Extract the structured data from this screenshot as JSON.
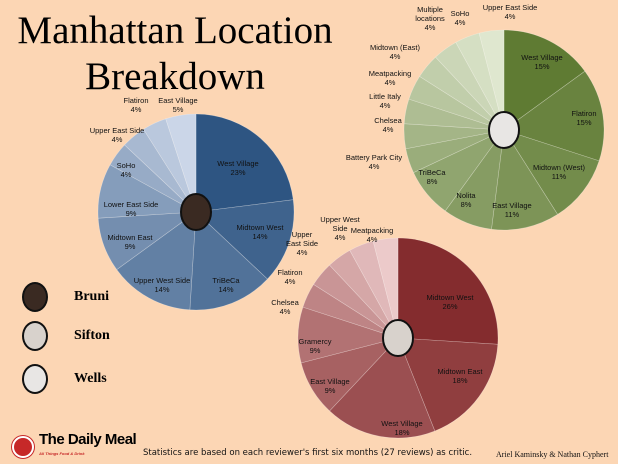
{
  "title": "Manhattan Location Breakdown",
  "legend": [
    {
      "name": "Bruni",
      "color": "#4a6f9f"
    },
    {
      "name": "Sifton",
      "color": "#a83c3c"
    },
    {
      "name": "Wells",
      "color": "#7a9a48"
    }
  ],
  "logo": {
    "name": "The Daily Meal",
    "tagline": "All Things Food & Drink"
  },
  "footnote": "Statistics are based on each reviewer's first six months (27 reviews) as critic.",
  "credits": "Ariel Kaminsky & Nathan Cyphert",
  "chart_data": [
    {
      "type": "pie",
      "reviewer": "Bruni",
      "colors": {
        "dark": "#2e5582",
        "light": "#cbd6e8"
      },
      "categories": [
        "West Village",
        "Midtown West",
        "TriBeCa",
        "Upper West Side",
        "Midtown East",
        "Lower East Side",
        "SoHo",
        "Upper East Side",
        "Flatiron",
        "East Village"
      ],
      "values": [
        23,
        14,
        14,
        14,
        9,
        9,
        4,
        4,
        4,
        5
      ]
    },
    {
      "type": "pie",
      "reviewer": "Sifton",
      "colors": {
        "dark": "#842c2e",
        "light": "#eccaca"
      },
      "categories": [
        "Midtown West",
        "Midtown East",
        "West Village",
        "East Village",
        "Gramercy",
        "Chelsea",
        "Flatiron",
        "Upper East Side",
        "Upper West Side",
        "Meatpacking"
      ],
      "values": [
        26,
        18,
        18,
        9,
        9,
        4,
        4,
        4,
        4,
        4
      ]
    },
    {
      "type": "pie",
      "reviewer": "Wells",
      "colors": {
        "dark": "#5f7b33",
        "light": "#dfe7cf"
      },
      "categories": [
        "West Village",
        "Flatiron",
        "Midtown (West)",
        "East Village",
        "Nolita",
        "TriBeCa",
        "Battery Park City",
        "Chelsea",
        "Little Italy",
        "Meatpacking",
        "Midtown (East)",
        "Multiple locations",
        "SoHo",
        "Upper East Side"
      ],
      "values": [
        15,
        15,
        11,
        11,
        8,
        8,
        4,
        4,
        4,
        4,
        4,
        4,
        4,
        4
      ]
    }
  ]
}
